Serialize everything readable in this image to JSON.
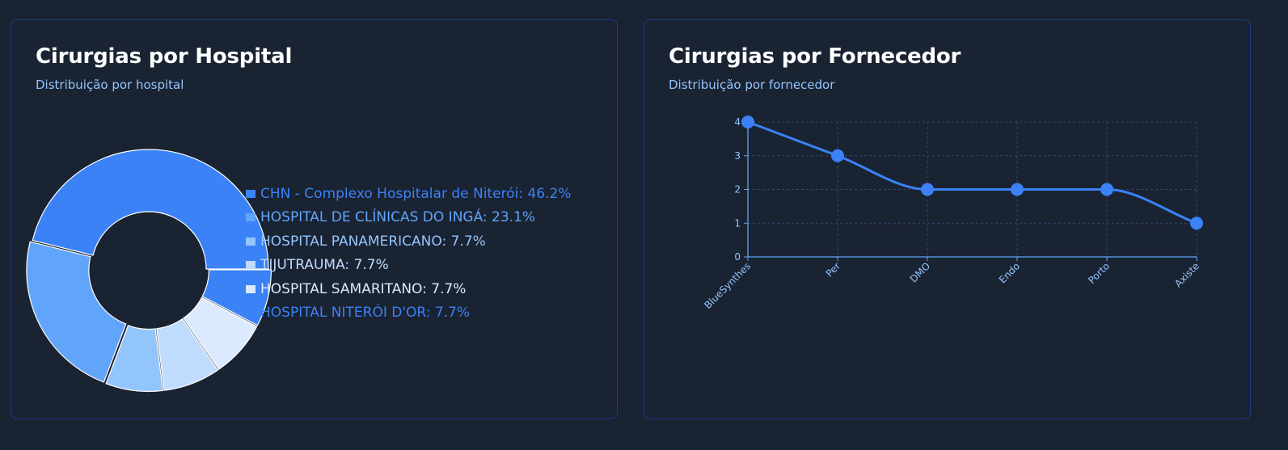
{
  "hospital_card": {
    "title": "Cirurgias por Hospital",
    "subtitle": "Distribuição por hospital"
  },
  "fornecedor_card": {
    "title": "Cirurgias por Fornecedor",
    "subtitle": "Distribuição por fornecedor"
  },
  "chart_data": [
    {
      "type": "pie",
      "variant": "donut",
      "title": "Cirurgias por Hospital",
      "subtitle": "Distribuição por hospital",
      "legend_position": "right",
      "slices": [
        {
          "label": "CHN - Complexo Hospitalar de Niterói",
          "value": 46.2,
          "display": "CHN - Complexo Hospitalar de Niterói: 46.2%",
          "color": "#3b82f6"
        },
        {
          "label": "HOSPITAL DE CLÍNICAS DO INGÁ",
          "value": 23.1,
          "display": "HOSPITAL DE CLÍNICAS DO INGÁ: 23.1%",
          "color": "#60a5fa"
        },
        {
          "label": "HOSPITAL PANAMERICANO",
          "value": 7.7,
          "display": "HOSPITAL PANAMERICANO: 7.7%",
          "color": "#93c5fd"
        },
        {
          "label": "TIJUTRAUMA",
          "value": 7.7,
          "display": "TIJUTRAUMA: 7.7%",
          "color": "#bfdbfe"
        },
        {
          "label": "HOSPITAL SAMARITANO",
          "value": 7.7,
          "display": "HOSPITAL SAMARITANO: 7.7%",
          "color": "#dbeafe"
        },
        {
          "label": "HOSPITAL NITERÓI D'OR",
          "value": 7.7,
          "display": "HOSPITAL NITERÓI D'OR: 7.7%",
          "color": "#3b82f6"
        }
      ]
    },
    {
      "type": "line",
      "title": "Cirurgias por Fornecedor",
      "subtitle": "Distribuição por fornecedor",
      "categories": [
        "BlueSynthes",
        "Per",
        "DMO",
        "Endo",
        "Porto",
        "Axiste"
      ],
      "values": [
        4,
        3,
        2,
        2,
        2,
        1
      ],
      "ylim": [
        0,
        4
      ],
      "yticks": [
        0,
        1,
        2,
        3,
        4
      ],
      "grid": true,
      "line_color": "#3b82f6",
      "axis_color": "#60a5fa",
      "tick_label_color": "#93c5fd",
      "grid_color": "#2c4a6e"
    }
  ]
}
